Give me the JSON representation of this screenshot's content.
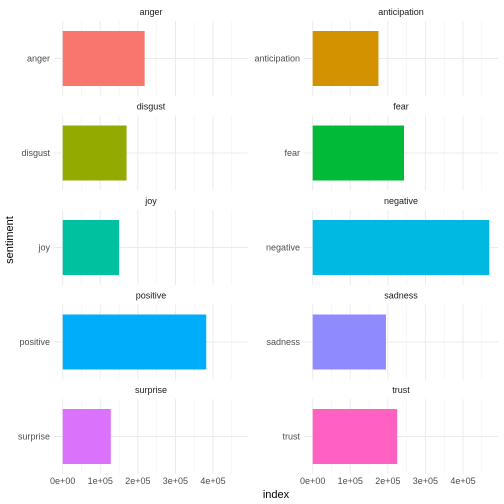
{
  "chart_data": {
    "type": "bar",
    "orientation": "horizontal",
    "facet": "wrap",
    "facet_columns": 2,
    "xlabel": "index",
    "ylabel": "sentiment",
    "xlim": [
      0,
      470000
    ],
    "x_ticks": [
      0,
      100000,
      200000,
      300000,
      400000
    ],
    "x_tick_labels": [
      "0e+00",
      "1e+05",
      "2e+05",
      "3e+05",
      "4e+05"
    ],
    "grid": true,
    "legend": "none",
    "panels": [
      {
        "strip": "anger",
        "category": "anger",
        "value": 218000,
        "color": "#F8766D"
      },
      {
        "strip": "anticipation",
        "category": "anticipation",
        "value": 175000,
        "color": "#D39200"
      },
      {
        "strip": "disgust",
        "category": "disgust",
        "value": 170000,
        "color": "#93AA00"
      },
      {
        "strip": "fear",
        "category": "fear",
        "value": 243000,
        "color": "#00BA38"
      },
      {
        "strip": "joy",
        "category": "joy",
        "value": 150000,
        "color": "#00C19F"
      },
      {
        "strip": "negative",
        "category": "negative",
        "value": 470000,
        "color": "#00B9E3"
      },
      {
        "strip": "positive",
        "category": "positive",
        "value": 382000,
        "color": "#00ADFA"
      },
      {
        "strip": "sadness",
        "category": "sadness",
        "value": 195000,
        "color": "#8F8BFF"
      },
      {
        "strip": "surprise",
        "category": "surprise",
        "value": 128000,
        "color": "#DB72FB"
      },
      {
        "strip": "trust",
        "category": "trust",
        "value": 225000,
        "color": "#FF61C3"
      }
    ]
  }
}
